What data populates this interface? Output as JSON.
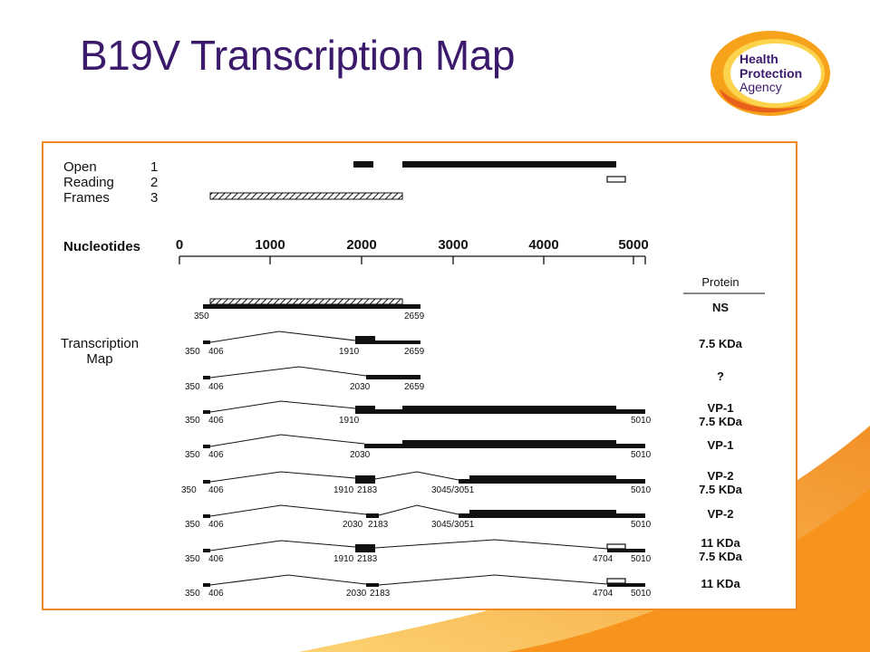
{
  "title": "B19V Transcription Map",
  "logo": {
    "line1": "Health",
    "line2": "Protection",
    "line3": "Agency"
  },
  "orf": {
    "open": "Open",
    "reading": "Reading",
    "frames": "Frames",
    "n1": "1",
    "n2": "2",
    "n3": "3"
  },
  "axis": {
    "label": "Nucleotides",
    "ticks": [
      "0",
      "1000",
      "2000",
      "3000",
      "4000",
      "5000"
    ]
  },
  "side": {
    "transcription": "Transcription",
    "map": "Map"
  },
  "protein_header": "Protein",
  "rows": [
    {
      "left": "350",
      "mid": "",
      "right": "2659",
      "protein": [
        "NS"
      ]
    },
    {
      "left": "350",
      "mid": "406",
      "p1": "1910",
      "right": "2659",
      "protein": [
        "7.5 KDa"
      ]
    },
    {
      "left": "350",
      "mid": "406",
      "p1": "2030",
      "right": "2659",
      "protein": [
        "?"
      ]
    },
    {
      "left": "350",
      "mid": "406",
      "p1": "1910",
      "right": "5010",
      "protein": [
        "VP-1",
        "7.5 KDa"
      ]
    },
    {
      "left": "350",
      "mid": "406",
      "p1": "2030",
      "right": "5010",
      "protein": [
        "VP-1"
      ]
    },
    {
      "left": "350",
      "mid": "406",
      "p1": "1910",
      "p2": "2183",
      "p3": "3045/3051",
      "right": "5010",
      "protein": [
        "VP-2",
        "7.5 KDa"
      ]
    },
    {
      "left": "350",
      "mid": "406",
      "p1": "2030",
      "p2": "2183",
      "p3": "3045/3051",
      "right": "5010",
      "protein": [
        "VP-2"
      ]
    },
    {
      "left": "350",
      "mid": "406",
      "p1": "1910",
      "p2": "2183",
      "p3": "4704",
      "right": "5010",
      "protein": [
        "11 KDa",
        "7.5 KDa"
      ]
    },
    {
      "left": "350",
      "mid": "406",
      "p1": "2030",
      "p2": "2183",
      "p3": "4704",
      "right": "5010",
      "protein": [
        "11 KDa"
      ]
    }
  ],
  "colors": {
    "title": "#3b1a6b",
    "frame": "#f28a22",
    "swoosh": "#f7941d"
  }
}
